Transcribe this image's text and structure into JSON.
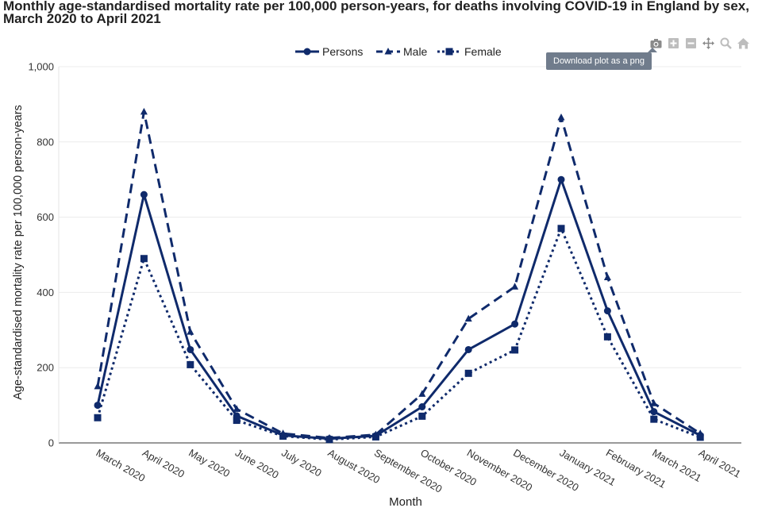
{
  "chart_data": {
    "type": "line",
    "title": "Monthly age-standardised mortality rate per 100,000 person-years, for deaths involving COVID-19 in England by sex, March 2020 to April 2021",
    "xlabel": "Month",
    "ylabel": "Age-standardised mortality rate per 100,000 person-years",
    "categories": [
      "March 2020",
      "April 2020",
      "May 2020",
      "June 2020",
      "July 2020",
      "August 2020",
      "September 2020",
      "October 2020",
      "November 2020",
      "December 2020",
      "January 2021",
      "February 2021",
      "March 2021",
      "April 2021"
    ],
    "ylim": [
      0,
      1000
    ],
    "yticks": [
      0,
      200,
      400,
      600,
      800,
      1000
    ],
    "ytick_labels": [
      "0",
      "200",
      "400",
      "600",
      "800",
      "1,000"
    ],
    "grid": true,
    "legend_position": "top-center",
    "series": [
      {
        "name": "Persons",
        "line": "solid",
        "marker": "circle",
        "values": [
          100,
          660,
          248,
          72,
          20,
          11,
          19,
          96,
          248,
          316,
          700,
          351,
          83,
          20
        ]
      },
      {
        "name": "Male",
        "line": "dash",
        "marker": "triangle",
        "values": [
          150,
          880,
          295,
          90,
          25,
          13,
          22,
          130,
          330,
          415,
          865,
          440,
          105,
          25
        ]
      },
      {
        "name": "Female",
        "line": "dot",
        "marker": "square",
        "values": [
          67,
          490,
          208,
          60,
          18,
          9,
          16,
          71,
          185,
          247,
          570,
          282,
          63,
          15
        ]
      }
    ],
    "color": "#0f2a6b"
  },
  "modebar": {
    "tooltip": "Download plot as a png",
    "buttons": [
      "camera-icon",
      "zoom-in-icon",
      "zoom-out-icon",
      "pan-icon",
      "autoscale-icon",
      "home-icon"
    ]
  }
}
